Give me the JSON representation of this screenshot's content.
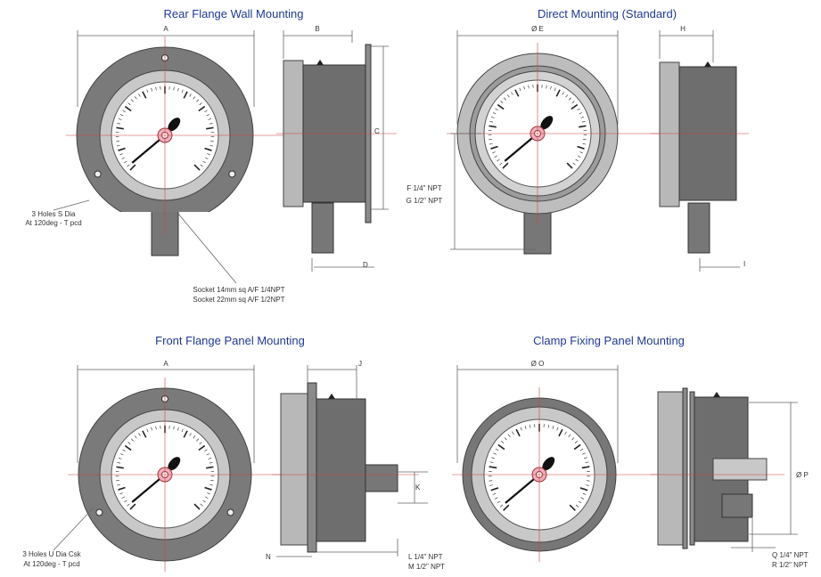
{
  "panels": [
    {
      "title": "Rear Flange Wall Mounting",
      "labels": [
        "A",
        "B",
        "C",
        "D",
        "3 Holes S Dia",
        "At 120deg - T pcd",
        "Socket 14mm sq A/F 1/4NPT",
        "Socket 22mm sq A/F 1/2NPT"
      ]
    },
    {
      "title": "Direct Mounting (Standard)",
      "labels": [
        "Ø E",
        "H",
        "F 1/4\" NPT",
        "G 1/2\" NPT",
        "I"
      ]
    },
    {
      "title": "Front Flange Panel Mounting",
      "labels": [
        "A",
        "J",
        "K",
        "N",
        "L 1/4\" NPT",
        "M 1/2\" NPT",
        "3 Holes U Dia Csk",
        "At 120deg - T pcd"
      ]
    },
    {
      "title": "Clamp Fixing Panel Mounting",
      "labels": [
        "Ø O",
        "Ø P",
        "Q 1/4\" NPT",
        "R 1/2\" NPT"
      ]
    }
  ]
}
